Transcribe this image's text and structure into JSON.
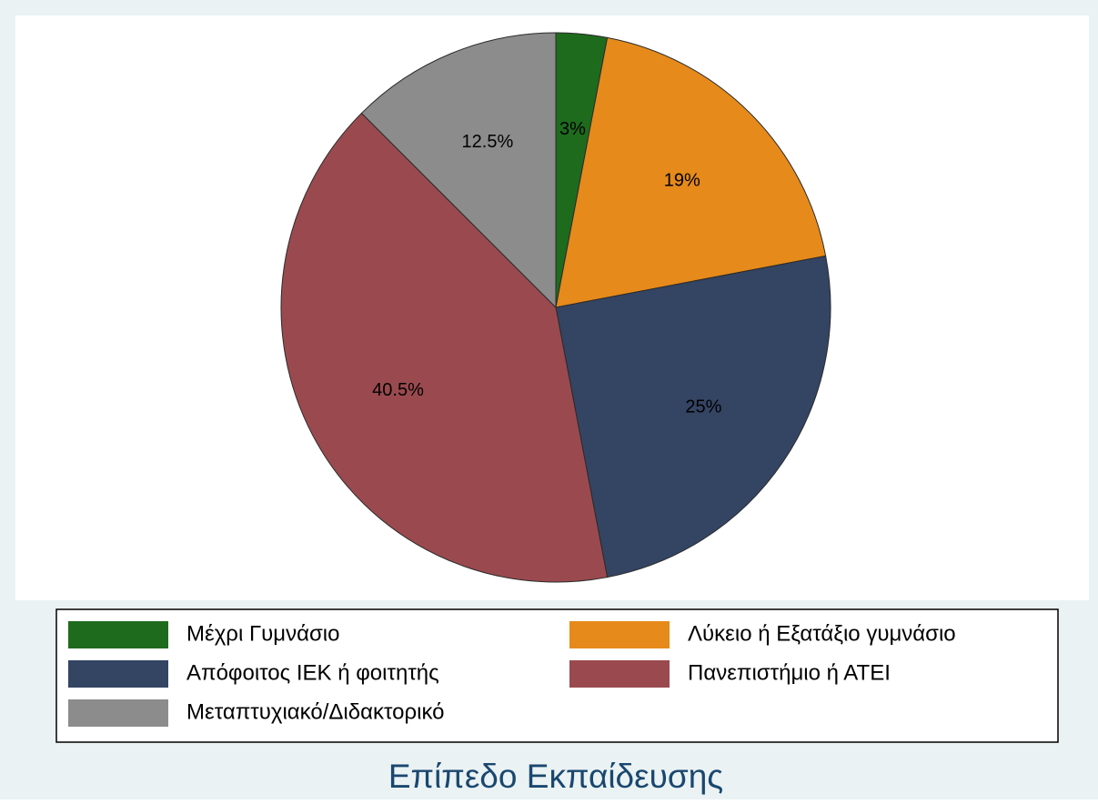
{
  "chart_data": {
    "type": "pie",
    "title": "Επίπεδο Εκπαίδευσης",
    "categories": [
      "Μέχρι Γυμνάσιο",
      "Λύκειο ή Εξατάξιο γυμνάσιο",
      "Απόφοιτος ΙΕΚ ή φοιτητής",
      "Πανεπιστήμιο ή ΑΤΕΙ",
      "Μεταπτυχιακό/Διδακτορικό"
    ],
    "values": [
      3,
      19,
      25,
      40.5,
      12.5
    ],
    "value_labels": [
      "3%",
      "19%",
      "25%",
      "40.5%",
      "12.5%"
    ],
    "colors": [
      "#1e6b1e",
      "#e58a1b",
      "#344463",
      "#9a4a4f",
      "#8c8c8c"
    ]
  }
}
